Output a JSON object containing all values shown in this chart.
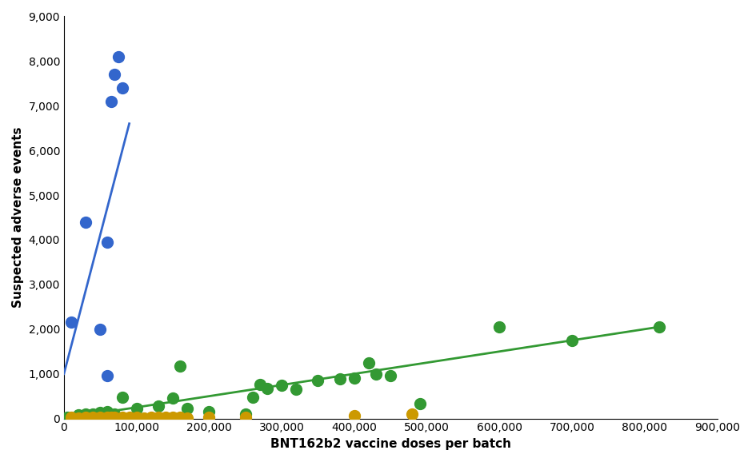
{
  "blue_x": [
    10000,
    30000,
    50000,
    60000,
    65000,
    70000,
    75000,
    80000,
    60000
  ],
  "blue_y": [
    2150,
    4400,
    2000,
    3950,
    7100,
    7700,
    8100,
    7400,
    950
  ],
  "green_x": [
    5000,
    20000,
    30000,
    40000,
    50000,
    60000,
    70000,
    80000,
    100000,
    130000,
    150000,
    160000,
    170000,
    200000,
    250000,
    260000,
    270000,
    280000,
    300000,
    320000,
    350000,
    380000,
    400000,
    420000,
    430000,
    450000,
    490000,
    600000,
    700000,
    820000
  ],
  "green_y": [
    30,
    80,
    100,
    100,
    130,
    150,
    100,
    480,
    230,
    280,
    450,
    1180,
    230,
    160,
    100,
    480,
    760,
    680,
    740,
    660,
    850,
    880,
    900,
    1250,
    1000,
    950,
    330,
    2050,
    1750,
    2050
  ],
  "orange_x": [
    10000,
    20000,
    30000,
    40000,
    50000,
    60000,
    65000,
    70000,
    80000,
    90000,
    100000,
    110000,
    120000,
    130000,
    140000,
    150000,
    160000,
    170000,
    200000,
    250000,
    400000,
    480000
  ],
  "orange_y": [
    20,
    10,
    20,
    20,
    20,
    20,
    20,
    20,
    30,
    20,
    20,
    10,
    20,
    20,
    20,
    20,
    20,
    10,
    30,
    20,
    70,
    100
  ],
  "blue_line_x": [
    0,
    90000
  ],
  "blue_line_y": [
    1000,
    6600
  ],
  "green_line_x": [
    0,
    820000
  ],
  "green_line_y": [
    0,
    2050
  ],
  "xlabel": "BNT162b2 vaccine doses per batch",
  "ylabel": "Suspected adverse events",
  "xlim": [
    0,
    900000
  ],
  "ylim": [
    0,
    9000
  ],
  "xticks": [
    0,
    100000,
    200000,
    300000,
    400000,
    500000,
    600000,
    700000,
    800000,
    900000
  ],
  "yticks": [
    0,
    1000,
    2000,
    3000,
    4000,
    5000,
    6000,
    7000,
    8000,
    9000
  ],
  "blue_color": "#3366CC",
  "green_color": "#339933",
  "orange_color": "#CC9900",
  "blue_line_color": "#3366CC",
  "green_line_color": "#339933",
  "marker_size": 10,
  "bg_color": "#FFFFFF"
}
